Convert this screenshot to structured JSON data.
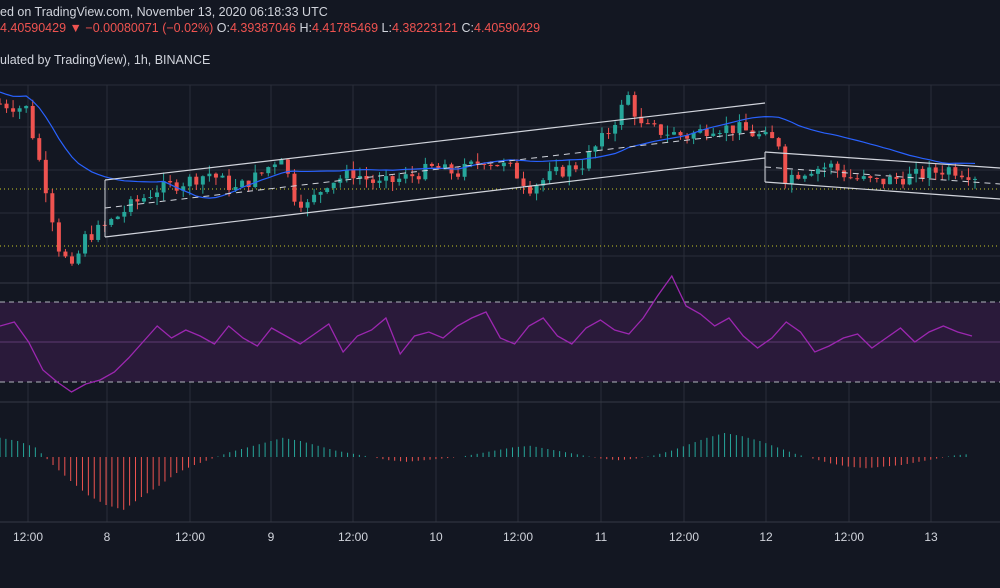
{
  "header": {
    "line1": "ed on TradingView.com, November 13, 2020 06:18:33 UTC",
    "price": "4.40590429",
    "change_arrow": "▼",
    "change": "−0.00080071 (−0.02%)",
    "o_label": "O:",
    "o_value": "4.39387046",
    "h_label": "H:",
    "h_value": "4.41785469",
    "l_label": "L:",
    "l_value": "4.38223121",
    "c_label": "C:",
    "c_value": "4.40590429",
    "symbol_line": "ulated by TradingView), 1h, BINANCE"
  },
  "colors": {
    "background": "#131722",
    "grid": "#2a2e39",
    "up": "#26a69a",
    "down": "#ef5350",
    "ma": "#2962ff",
    "rsi": "#9c27b0",
    "rsi_band": "#2a1a3a",
    "channel": "#d1d4dc",
    "dotted_level": "#c8c828"
  },
  "chart_data": [
    {
      "type": "candlestick",
      "timeframe": "1h",
      "exchange": "BINANCE",
      "x_ticks": [
        "12:00",
        "8",
        "12:00",
        "9",
        "12:00",
        "10",
        "12:00",
        "11",
        "12:00",
        "12",
        "12:00",
        "13"
      ],
      "last_close": 4.40590429,
      "price_trend": [
        [
          0,
          4.72
        ],
        [
          4,
          4.7
        ],
        [
          7,
          4.36
        ],
        [
          9,
          4.1
        ],
        [
          11,
          4.0
        ],
        [
          13,
          4.14
        ],
        [
          16,
          4.19
        ],
        [
          20,
          4.28
        ],
        [
          24,
          4.35
        ],
        [
          28,
          4.38
        ],
        [
          32,
          4.42
        ],
        [
          36,
          4.35
        ],
        [
          40,
          4.42
        ],
        [
          43,
          4.5
        ],
        [
          45,
          4.32
        ],
        [
          47,
          4.28
        ],
        [
          50,
          4.38
        ],
        [
          54,
          4.42
        ],
        [
          58,
          4.37
        ],
        [
          62,
          4.4
        ],
        [
          66,
          4.44
        ],
        [
          70,
          4.42
        ],
        [
          74,
          4.48
        ],
        [
          78,
          4.44
        ],
        [
          81,
          4.36
        ],
        [
          85,
          4.42
        ],
        [
          89,
          4.46
        ],
        [
          93,
          4.6
        ],
        [
          96,
          4.75
        ],
        [
          98,
          4.62
        ],
        [
          101,
          4.6
        ],
        [
          105,
          4.58
        ],
        [
          109,
          4.62
        ],
        [
          113,
          4.61
        ],
        [
          116,
          4.58
        ],
        [
          119,
          4.55
        ],
        [
          120,
          4.4
        ],
        [
          124,
          4.44
        ],
        [
          127,
          4.45
        ],
        [
          130,
          4.4
        ],
        [
          134,
          4.38
        ],
        [
          138,
          4.4
        ],
        [
          142,
          4.42
        ],
        [
          145,
          4.44
        ],
        [
          148,
          4.42
        ],
        [
          149,
          4.41
        ]
      ]
    },
    {
      "type": "line",
      "name": "RSI",
      "upper_band": 70,
      "lower_band": 30,
      "values": [
        58,
        60,
        50,
        36,
        30,
        25,
        29,
        31,
        35,
        42,
        50,
        58,
        52,
        56,
        53,
        49,
        58,
        52,
        48,
        57,
        53,
        49,
        54,
        59,
        45,
        53,
        56,
        62,
        44,
        53,
        55,
        52,
        58,
        62,
        65,
        52,
        49,
        58,
        62,
        53,
        49,
        57,
        61,
        56,
        54,
        62,
        73,
        83,
        68,
        64,
        58,
        62,
        53,
        47,
        52,
        60,
        55,
        45,
        48,
        52,
        54,
        47,
        52,
        57,
        50,
        55,
        58,
        55,
        53
      ]
    },
    {
      "type": "bar",
      "name": "Histogram",
      "values": [
        1.2,
        1.0,
        0.6,
        -0.5,
        -1.5,
        -2.4,
        -3.0,
        -3.3,
        -2.5,
        -1.8,
        -1.0,
        -0.5,
        -0.1,
        0.3,
        0.6,
        0.9,
        1.2,
        1.0,
        0.7,
        0.4,
        0.2,
        0.0,
        -0.2,
        -0.3,
        -0.2,
        -0.1,
        0.0,
        0.2,
        0.4,
        0.6,
        0.7,
        0.5,
        0.3,
        0.1,
        -0.1,
        -0.2,
        -0.1,
        0.1,
        0.4,
        0.8,
        1.2,
        1.5,
        1.3,
        1.0,
        0.6,
        0.2,
        -0.1,
        -0.4,
        -0.6,
        -0.7,
        -0.6,
        -0.5,
        -0.3,
        -0.1,
        0.1,
        0.2
      ]
    }
  ]
}
